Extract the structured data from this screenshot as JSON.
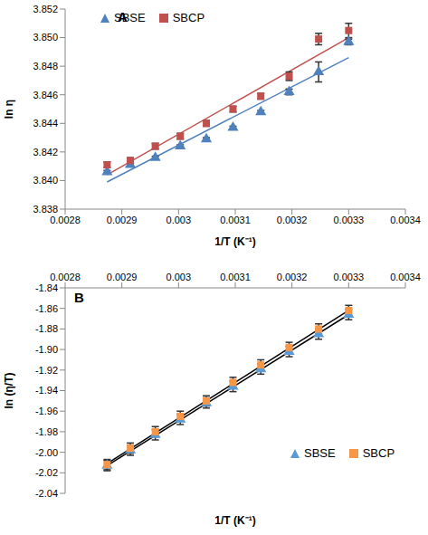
{
  "chart_data": [
    {
      "type": "scatter",
      "label": "A",
      "x_label": "1/T (K⁻¹)",
      "y_label": "ln η",
      "xlim": [
        0.0028,
        0.0034
      ],
      "xticks": [
        0.0028,
        0.0029,
        0.003,
        0.0031,
        0.0032,
        0.0033,
        0.0034
      ],
      "ylim": [
        3.838,
        3.852
      ],
      "yticks": [
        3.838,
        {
          "value": 3.84,
          "label": "3.840"
        },
        3.842,
        3.844,
        3.846,
        3.848,
        {
          "value": 3.85,
          "label": "3.850"
        },
        3.852
      ],
      "legend": "top",
      "grid": false,
      "series": [
        {
          "name": "SBSE",
          "color": "#4f81bd",
          "marker": "triangle",
          "x": [
            0.002874,
            0.002915,
            0.002959,
            0.003003,
            0.003049,
            0.003096,
            0.003145,
            0.003195,
            0.003247,
            0.0033
          ],
          "values": [
            3.8406,
            3.8411,
            3.8416,
            3.8424,
            3.8429,
            3.8437,
            3.8448,
            3.8462,
            3.8476,
            3.8497
          ],
          "errors": [
            0.0001,
            0.0001,
            0.0001,
            0.0001,
            0.0001,
            0.0001,
            0.0001,
            0.0002,
            0.0007,
            0.0002
          ],
          "trend": {
            "x": [
              0.002874,
              0.0033
            ],
            "values": [
              3.8399,
              3.8486
            ],
            "color": "#4f81bd"
          }
        },
        {
          "name": "SBCP",
          "color": "#c0504d",
          "marker": "square",
          "x": [
            0.002874,
            0.002915,
            0.002959,
            0.003003,
            0.003049,
            0.003096,
            0.003145,
            0.003195,
            0.003247,
            0.0033
          ],
          "values": [
            3.8411,
            3.8414,
            3.8424,
            3.8431,
            3.844,
            3.845,
            3.8459,
            3.8473,
            3.8499,
            3.8505
          ],
          "errors": [
            0.0002,
            0.0002,
            0.0002,
            0.0002,
            0.0002,
            0.0002,
            0.0002,
            0.0003,
            0.0004,
            0.0005
          ],
          "trend": {
            "x": [
              0.002874,
              0.0033
            ],
            "values": [
              3.8404,
              3.85
            ],
            "color": "#c0504d"
          }
        }
      ]
    },
    {
      "type": "scatter",
      "label": "B",
      "x_label": "1/T (K⁻¹)",
      "y_label": "ln (η/T)",
      "xlim": [
        0.0028,
        0.0034
      ],
      "xticks": [
        0.0028,
        0.0029,
        0.003,
        0.0031,
        0.0032,
        0.0033,
        0.0034
      ],
      "ylim": [
        -2.04,
        -1.84
      ],
      "yticks": [
        -2.04,
        -2.02,
        {
          "value": -2,
          "label": "-2.00"
        },
        -1.98,
        -1.96,
        -1.94,
        -1.92,
        {
          "value": -1.9,
          "label": "-1.90"
        },
        -1.88,
        -1.86,
        -1.84
      ],
      "legend": "lower right",
      "grid": false,
      "series": [
        {
          "name": "SBSE",
          "color": "#5b9bd5",
          "marker": "triangle",
          "x": [
            0.002874,
            0.002915,
            0.002959,
            0.003003,
            0.003049,
            0.003096,
            0.003145,
            0.003195,
            0.003247,
            0.0033
          ],
          "values": [
            -2.013,
            -1.998,
            -1.983,
            -1.968,
            -1.952,
            -1.936,
            -1.919,
            -1.902,
            -1.885,
            -1.866
          ],
          "errors": [
            0.005,
            0.005,
            0.005,
            0.005,
            0.005,
            0.005,
            0.005,
            0.005,
            0.005,
            0.005
          ],
          "trend": {
            "x": [
              0.002874,
              0.0033
            ],
            "values": [
              -2.013,
              -1.866
            ],
            "color": "#000000"
          }
        },
        {
          "name": "SBCP",
          "color": "#f79646",
          "marker": "square",
          "x": [
            0.002874,
            0.002915,
            0.002959,
            0.003003,
            0.003049,
            0.003096,
            0.003145,
            0.003195,
            0.003247,
            0.0033
          ],
          "values": [
            -2.012,
            -1.996,
            -1.98,
            -1.965,
            -1.95,
            -1.932,
            -1.915,
            -1.898,
            -1.88,
            -1.862
          ],
          "errors": [
            0.005,
            0.005,
            0.005,
            0.005,
            0.005,
            0.005,
            0.005,
            0.005,
            0.005,
            0.005
          ],
          "trend": {
            "x": [
              0.002874,
              0.0033
            ],
            "values": [
              -2.011,
              -1.862
            ],
            "color": "#000000"
          }
        }
      ]
    }
  ]
}
